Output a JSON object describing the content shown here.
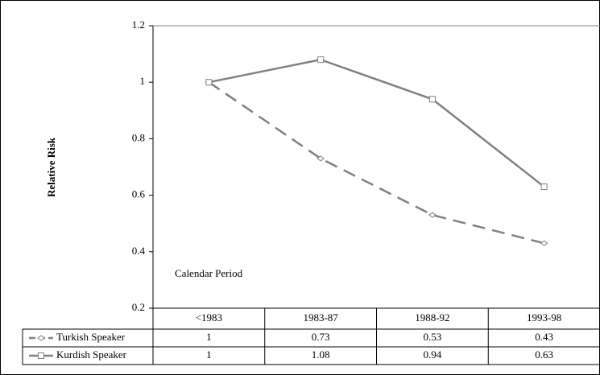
{
  "chart_data": {
    "type": "line",
    "y_label": "Relative Risk",
    "x_label": "Calendar Period",
    "categories": [
      "<1983",
      "1983-87",
      "1988-92",
      "1993-98"
    ],
    "series": [
      {
        "name": "Turkish Speaker",
        "color": "#808080",
        "dash": true,
        "marker": "diamond",
        "values": [
          1,
          0.73,
          0.53,
          0.43
        ]
      },
      {
        "name": "Kurdish Speaker",
        "color": "#808080",
        "dash": false,
        "marker": "square",
        "values": [
          1,
          1.08,
          0.94,
          0.63
        ]
      }
    ],
    "ylim": [
      0.2,
      1.2
    ],
    "yticks": [
      0.2,
      0.4,
      0.6,
      0.8,
      1,
      1.2
    ],
    "data_table": true
  }
}
